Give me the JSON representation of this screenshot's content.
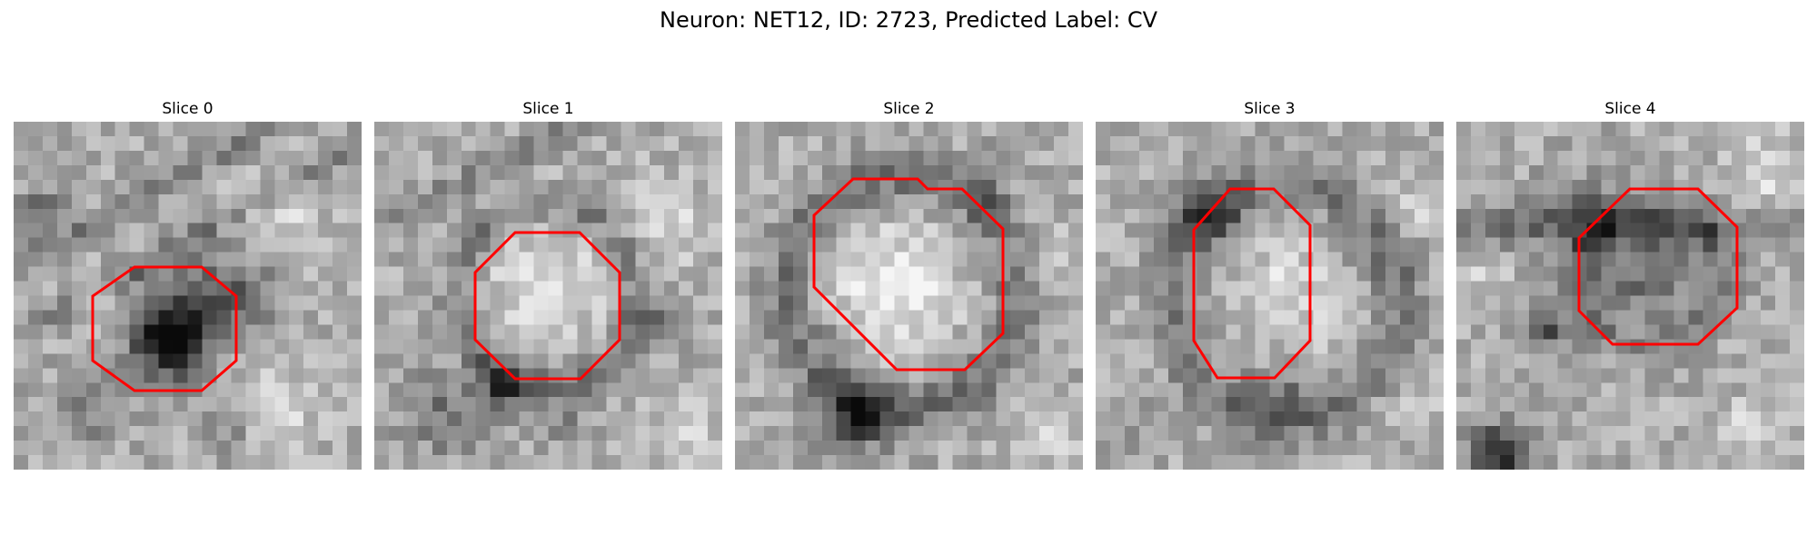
{
  "figure": {
    "suptitle": "Neuron: NET12, ID: 2723, Predicted Label: CV"
  },
  "overlay": {
    "color": "#ff0000"
  },
  "slices": [
    {
      "title": "Slice 0",
      "seed": 11,
      "darkBlobs": [
        [
          0.45,
          0.63,
          0.07,
          -145
        ],
        [
          0.48,
          0.55,
          0.1,
          -70
        ],
        [
          0.65,
          0.47,
          0.08,
          -60
        ],
        [
          0.08,
          0.25,
          0.05,
          -50
        ],
        [
          0.2,
          0.84,
          0.07,
          -45
        ],
        [
          0.62,
          0.9,
          0.05,
          -40
        ]
      ],
      "brightBlobs": [
        [
          0.74,
          0.28,
          0.09,
          45
        ],
        [
          0.75,
          0.84,
          0.08,
          45
        ],
        [
          0.22,
          0.52,
          0.06,
          25
        ]
      ],
      "stripes": [
        [
          -0.55,
          0.42,
          0.025,
          -50
        ],
        [
          -0.55,
          0.62,
          0.025,
          -45
        ]
      ]
    },
    {
      "title": "Slice 1",
      "seed": 23,
      "darkBlobs": [
        [
          0.37,
          0.76,
          0.05,
          -110
        ],
        [
          0.2,
          0.84,
          0.08,
          -55
        ],
        [
          0.8,
          0.58,
          0.05,
          -45
        ],
        [
          0.55,
          0.86,
          0.05,
          -30
        ]
      ],
      "brightBlobs": [
        [
          0.5,
          0.47,
          0.13,
          50
        ],
        [
          0.85,
          0.3,
          0.1,
          35
        ],
        [
          0.9,
          0.9,
          0.06,
          45
        ]
      ],
      "stripes": [
        [
          -0.5,
          0.3,
          0.025,
          -40
        ]
      ],
      "ring": [
        0.5,
        0.5,
        0.26,
        0.035,
        -55
      ]
    },
    {
      "title": "Slice 2",
      "seed": 37,
      "darkBlobs": [
        [
          0.35,
          0.84,
          0.07,
          -120
        ],
        [
          0.3,
          0.6,
          0.04,
          -30
        ],
        [
          0.72,
          0.18,
          0.06,
          -35
        ]
      ],
      "brightBlobs": [
        [
          0.45,
          0.48,
          0.13,
          65
        ],
        [
          0.9,
          0.4,
          0.07,
          30
        ],
        [
          0.9,
          0.9,
          0.07,
          35
        ]
      ],
      "ring": [
        0.48,
        0.49,
        0.33,
        0.05,
        -60
      ]
    },
    {
      "title": "Slice 3",
      "seed": 53,
      "darkBlobs": [
        [
          0.32,
          0.26,
          0.06,
          -110
        ],
        [
          0.52,
          0.81,
          0.07,
          -55
        ],
        [
          0.8,
          0.4,
          0.05,
          -35
        ],
        [
          0.1,
          0.9,
          0.05,
          -30
        ]
      ],
      "brightBlobs": [
        [
          0.55,
          0.5,
          0.11,
          45
        ],
        [
          0.92,
          0.25,
          0.06,
          30
        ],
        [
          0.9,
          0.82,
          0.06,
          30
        ]
      ],
      "ring": [
        0.55,
        0.52,
        0.33,
        0.05,
        -50
      ]
    },
    {
      "title": "Slice 4",
      "seed": 71,
      "darkBlobs": [
        [
          0.52,
          0.45,
          0.11,
          -60
        ],
        [
          0.27,
          0.6,
          0.04,
          -85
        ],
        [
          0.12,
          0.96,
          0.06,
          -130
        ],
        [
          0.35,
          0.25,
          0.08,
          -45
        ]
      ],
      "brightBlobs": [
        [
          0.5,
          0.58,
          0.04,
          60
        ],
        [
          0.88,
          0.15,
          0.08,
          45
        ],
        [
          0.85,
          0.9,
          0.07,
          40
        ],
        [
          0.08,
          0.45,
          0.05,
          30
        ]
      ],
      "stripes": [
        [
          0.0,
          0.3,
          0.04,
          -55
        ]
      ],
      "ring": [
        0.56,
        0.44,
        0.2,
        0.04,
        -45
      ]
    }
  ]
}
